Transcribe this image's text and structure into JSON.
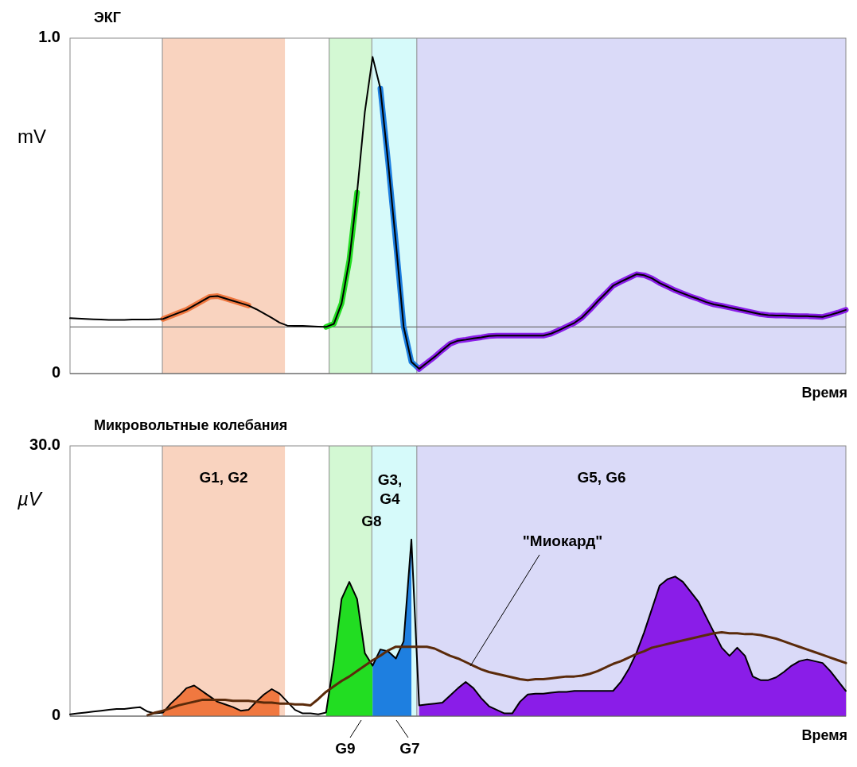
{
  "chart_data": [
    {
      "type": "line",
      "title": "ЭКГ",
      "ylabel": "mV",
      "xlabel": "Время",
      "ylim": [
        0,
        1
      ],
      "yticks": [
        {
          "value": 0,
          "label": "0"
        },
        {
          "value": 1,
          "label": "1.0"
        }
      ],
      "tick_labels": "y",
      "categories": [
        null,
        null,
        null,
        null,
        null,
        null,
        null,
        null,
        null,
        null,
        null,
        null,
        null,
        null,
        null,
        null,
        null,
        null,
        null,
        null,
        null,
        null,
        null,
        null,
        null,
        null,
        null,
        null,
        null,
        null,
        null,
        null,
        null,
        null,
        null,
        null,
        null,
        null,
        null,
        null,
        null,
        null,
        null,
        null,
        null,
        null,
        null,
        null,
        null,
        null,
        null,
        null,
        null,
        null,
        null,
        null,
        null,
        null,
        null,
        null,
        null,
        null,
        null,
        null,
        null,
        null,
        null,
        null,
        null,
        null,
        null,
        null,
        null,
        null,
        null,
        null,
        null,
        null,
        null,
        null,
        null,
        null,
        null,
        null,
        null,
        null,
        null,
        null,
        null,
        null,
        null,
        null,
        null,
        null,
        null,
        null,
        null,
        null,
        null,
        null,
        null
      ],
      "ref_lines": [
        {
          "axis": "y",
          "value": 0.139,
          "color": "#707070"
        }
      ],
      "series": [
        {
          "color": "#f07840",
          "values": [
            null,
            null,
            null,
            null,
            null,
            null,
            null,
            null,
            null,
            null,
            null,
            null,
            0.163,
            0.172,
            0.181,
            0.19,
            0.203,
            0.216,
            0.229,
            0.231,
            0.224,
            0.217,
            0.21,
            0.203,
            null,
            null,
            null,
            null,
            null,
            null,
            null,
            null,
            null,
            null,
            null,
            null,
            null,
            null,
            null,
            null,
            null,
            null,
            null,
            null,
            null,
            null,
            null,
            null,
            null,
            null,
            null,
            null,
            null,
            null,
            null,
            null,
            null,
            null,
            null,
            null,
            null,
            null,
            null,
            null,
            null,
            null,
            null,
            null,
            null,
            null,
            null,
            null,
            null,
            null,
            null,
            null,
            null,
            null,
            null,
            null,
            null,
            null,
            null,
            null,
            null,
            null,
            null,
            null,
            null,
            null,
            null,
            null,
            null,
            null,
            null,
            null,
            null,
            null,
            null,
            null,
            null
          ]
        },
        {
          "color": "#22dd22",
          "values": [
            null,
            null,
            null,
            null,
            null,
            null,
            null,
            null,
            null,
            null,
            null,
            null,
            null,
            null,
            null,
            null,
            null,
            null,
            null,
            null,
            null,
            null,
            null,
            null,
            null,
            null,
            null,
            null,
            null,
            null,
            null,
            null,
            null,
            0.139,
            0.148,
            0.209,
            0.338,
            0.54,
            null,
            null,
            null,
            null,
            null,
            null,
            null,
            null,
            null,
            null,
            null,
            null,
            null,
            null,
            null,
            null,
            null,
            null,
            null,
            null,
            null,
            null,
            null,
            null,
            null,
            null,
            null,
            null,
            null,
            null,
            null,
            null,
            null,
            null,
            null,
            null,
            null,
            null,
            null,
            null,
            null,
            null,
            null,
            null,
            null,
            null,
            null,
            null,
            null,
            null,
            null,
            null,
            null,
            null,
            null,
            null,
            null,
            null,
            null,
            null,
            null,
            null,
            null
          ]
        },
        {
          "color": "#1e7fe0",
          "values": [
            null,
            null,
            null,
            null,
            null,
            null,
            null,
            null,
            null,
            null,
            null,
            null,
            null,
            null,
            null,
            null,
            null,
            null,
            null,
            null,
            null,
            null,
            null,
            null,
            null,
            null,
            null,
            null,
            null,
            null,
            null,
            null,
            null,
            null,
            null,
            null,
            null,
            null,
            null,
            null,
            0.85,
            0.63,
            0.39,
            0.14,
            0.035,
            0.014,
            null,
            null,
            null,
            null,
            null,
            null,
            null,
            null,
            null,
            null,
            null,
            null,
            null,
            null,
            null,
            null,
            null,
            null,
            null,
            null,
            null,
            null,
            null,
            null,
            null,
            null,
            null,
            null,
            null,
            null,
            null,
            null,
            null,
            null,
            null,
            null,
            null,
            null,
            null,
            null,
            null,
            null,
            null,
            null,
            null,
            null,
            null,
            null,
            null,
            null,
            null,
            null,
            null,
            null,
            null
          ]
        },
        {
          "color": "#8a1de8",
          "values": [
            null,
            null,
            null,
            null,
            null,
            null,
            null,
            null,
            null,
            null,
            null,
            null,
            null,
            null,
            null,
            null,
            null,
            null,
            null,
            null,
            null,
            null,
            null,
            null,
            null,
            null,
            null,
            null,
            null,
            null,
            null,
            null,
            null,
            null,
            null,
            null,
            null,
            null,
            null,
            null,
            null,
            null,
            null,
            null,
            null,
            0.014,
            0.032,
            0.05,
            0.07,
            0.089,
            0.098,
            0.101,
            0.105,
            0.108,
            0.112,
            0.113,
            0.113,
            0.113,
            0.113,
            0.113,
            0.113,
            0.113,
            0.119,
            0.129,
            0.14,
            0.151,
            0.167,
            0.19,
            0.215,
            0.238,
            0.262,
            0.274,
            0.285,
            0.296,
            0.293,
            0.284,
            0.27,
            0.259,
            0.248,
            0.239,
            0.23,
            0.222,
            0.213,
            0.206,
            0.202,
            0.197,
            0.192,
            0.187,
            0.182,
            0.177,
            0.174,
            0.173,
            0.173,
            0.172,
            0.171,
            0.171,
            0.17,
            0.169,
            0.175,
            0.182,
            0.19
          ]
        },
        {
          "color": "#000000",
          "values": [
            0.165,
            0.164,
            0.163,
            0.162,
            0.161,
            0.16,
            0.16,
            0.16,
            0.161,
            0.161,
            0.161,
            0.162,
            0.163,
            0.172,
            0.181,
            0.19,
            0.203,
            0.216,
            0.229,
            0.231,
            0.224,
            0.217,
            0.21,
            0.203,
            0.192,
            0.179,
            0.166,
            0.152,
            0.143,
            0.142,
            0.142,
            0.141,
            0.14,
            0.139,
            0.148,
            0.209,
            0.338,
            0.54,
            0.78,
            0.944,
            0.85,
            0.63,
            0.39,
            0.14,
            0.035,
            0.014,
            0.032,
            0.05,
            0.07,
            0.089,
            0.098,
            0.101,
            0.105,
            0.108,
            0.112,
            0.113,
            0.113,
            0.113,
            0.113,
            0.113,
            0.113,
            0.113,
            0.119,
            0.129,
            0.14,
            0.151,
            0.167,
            0.19,
            0.215,
            0.238,
            0.262,
            0.274,
            0.285,
            0.296,
            0.293,
            0.284,
            0.27,
            0.259,
            0.248,
            0.239,
            0.23,
            0.222,
            0.213,
            0.206,
            0.202,
            0.197,
            0.192,
            0.187,
            0.182,
            0.177,
            0.174,
            0.173,
            0.173,
            0.172,
            0.171,
            0.171,
            0.17,
            0.169,
            0.175,
            0.182,
            0.19
          ]
        }
      ]
    },
    {
      "type": "area",
      "title": "Микровольтные колебания",
      "ylabel": "µV",
      "xlabel": "Время",
      "ylim": [
        0,
        30
      ],
      "yticks": [
        {
          "value": 0,
          "label": "0"
        },
        {
          "value": 30,
          "label": "30.0"
        }
      ],
      "tick_labels": "y",
      "categories": [
        null,
        null,
        null,
        null,
        null,
        null,
        null,
        null,
        null,
        null,
        null,
        null,
        null,
        null,
        null,
        null,
        null,
        null,
        null,
        null,
        null,
        null,
        null,
        null,
        null,
        null,
        null,
        null,
        null,
        null,
        null,
        null,
        null,
        null,
        null,
        null,
        null,
        null,
        null,
        null,
        null,
        null,
        null,
        null,
        null,
        null,
        null,
        null,
        null,
        null,
        null,
        null,
        null,
        null,
        null,
        null,
        null,
        null,
        null,
        null,
        null,
        null,
        null,
        null,
        null,
        null,
        null,
        null,
        null,
        null,
        null,
        null,
        null,
        null,
        null,
        null,
        null,
        null,
        null,
        null,
        null,
        null,
        null,
        null,
        null,
        null,
        null,
        null,
        null,
        null,
        null,
        null,
        null,
        null,
        null,
        null,
        null,
        null,
        null,
        null,
        null
      ],
      "annotations": [
        "G1, G2",
        "G3, G4",
        "G8",
        "G5, G6",
        "\"Миокард\"",
        "G9",
        "G7"
      ],
      "series": [
        {
          "color": "#f07840",
          "values": [
            null,
            null,
            null,
            null,
            null,
            null,
            null,
            null,
            null,
            null,
            null,
            null,
            0.4,
            1.4,
            2.2,
            3.1,
            3.4,
            2.8,
            2.2,
            1.6,
            1.3,
            1,
            0.6,
            0.7,
            1.6,
            2.4,
            3,
            2.5,
            null,
            null,
            null,
            null,
            null,
            null,
            null,
            null,
            null,
            null,
            null,
            null,
            null,
            null,
            null,
            null,
            null,
            null,
            null,
            null,
            null,
            null,
            null,
            null,
            null,
            null,
            null,
            null,
            null,
            null,
            null,
            null,
            null,
            null,
            null,
            null,
            null,
            null,
            null,
            null,
            null,
            null,
            null,
            null,
            null,
            null,
            null,
            null,
            null,
            null,
            null,
            null,
            null,
            null,
            null,
            null,
            null,
            null,
            null,
            null,
            null,
            null,
            null,
            null,
            null,
            null,
            null,
            null,
            null,
            null,
            null,
            null,
            null
          ]
        },
        {
          "color": "#22dd22",
          "values": [
            null,
            null,
            null,
            null,
            null,
            null,
            null,
            null,
            null,
            null,
            null,
            null,
            null,
            null,
            null,
            null,
            null,
            null,
            null,
            null,
            null,
            null,
            null,
            null,
            null,
            null,
            null,
            null,
            null,
            null,
            null,
            null,
            null,
            0.4,
            6,
            13,
            14.9,
            13,
            7,
            5.6,
            null,
            null,
            null,
            null,
            null,
            null,
            null,
            null,
            null,
            null,
            null,
            null,
            null,
            null,
            null,
            null,
            null,
            null,
            null,
            null,
            null,
            null,
            null,
            null,
            null,
            null,
            null,
            null,
            null,
            null,
            null,
            null,
            null,
            null,
            null,
            null,
            null,
            null,
            null,
            null,
            null,
            null,
            null,
            null,
            null,
            null,
            null,
            null,
            null,
            null,
            null,
            null,
            null,
            null,
            null,
            null,
            null,
            null,
            null,
            null,
            null
          ]
        },
        {
          "color": "#1e7fe0",
          "values": [
            null,
            null,
            null,
            null,
            null,
            null,
            null,
            null,
            null,
            null,
            null,
            null,
            null,
            null,
            null,
            null,
            null,
            null,
            null,
            null,
            null,
            null,
            null,
            null,
            null,
            null,
            null,
            null,
            null,
            null,
            null,
            null,
            null,
            null,
            null,
            null,
            null,
            null,
            null,
            5.6,
            7.4,
            7.2,
            6.4,
            8.3,
            19.6,
            null,
            null,
            null,
            null,
            null,
            null,
            null,
            null,
            null,
            null,
            null,
            null,
            null,
            null,
            null,
            null,
            null,
            null,
            null,
            null,
            null,
            null,
            null,
            null,
            null,
            null,
            null,
            null,
            null,
            null,
            null,
            null,
            null,
            null,
            null,
            null,
            null,
            null,
            null,
            null,
            null,
            null,
            null,
            null,
            null,
            null,
            null,
            null,
            null,
            null,
            null,
            null,
            null,
            null,
            null,
            null
          ]
        },
        {
          "color": "#8a1de8",
          "values": [
            null,
            null,
            null,
            null,
            null,
            null,
            null,
            null,
            null,
            null,
            null,
            null,
            null,
            null,
            null,
            null,
            null,
            null,
            null,
            null,
            null,
            null,
            null,
            null,
            null,
            null,
            null,
            null,
            null,
            null,
            null,
            null,
            null,
            null,
            null,
            null,
            null,
            null,
            null,
            null,
            null,
            null,
            null,
            null,
            null,
            1.2,
            1.3,
            1.4,
            1.5,
            2.3,
            3.1,
            3.8,
            3.1,
            2,
            1.1,
            0.7,
            0.3,
            0.3,
            1.6,
            2.4,
            2.5,
            2.5,
            2.6,
            2.7,
            2.7,
            2.8,
            2.8,
            2.8,
            2.8,
            2.8,
            2.8,
            3.8,
            5.2,
            7,
            9.3,
            11.9,
            14.5,
            15.2,
            15.5,
            14.9,
            13.8,
            12.7,
            11,
            9.3,
            7.6,
            6.7,
            7.6,
            6.7,
            4.4,
            4,
            4,
            4.3,
            4.9,
            5.6,
            6.1,
            6.3,
            6.1,
            5.9,
            5,
            3.9,
            2.8
          ]
        },
        {
          "type": "line",
          "color": "#000000",
          "values": [
            0.2,
            0.3,
            0.4,
            0.5,
            0.6,
            0.7,
            0.8,
            0.8,
            0.9,
            1,
            0.5,
            0.3,
            0.4,
            1.4,
            2.2,
            3.1,
            3.4,
            2.8,
            2.2,
            1.6,
            1.3,
            1,
            0.6,
            0.7,
            1.6,
            2.4,
            3,
            2.5,
            1.6,
            0.7,
            0.3,
            0.3,
            0.2,
            0.4,
            6,
            13,
            14.9,
            13,
            7,
            5.6,
            7.4,
            7.2,
            6.4,
            8.3,
            19.6,
            1.2,
            1.3,
            1.4,
            1.5,
            2.3,
            3.1,
            3.8,
            3.1,
            2,
            1.1,
            0.7,
            0.3,
            0.3,
            1.6,
            2.4,
            2.5,
            2.5,
            2.6,
            2.7,
            2.7,
            2.8,
            2.8,
            2.8,
            2.8,
            2.8,
            2.8,
            3.8,
            5.2,
            7,
            9.3,
            11.9,
            14.5,
            15.2,
            15.5,
            14.9,
            13.8,
            12.7,
            11,
            9.3,
            7.6,
            6.7,
            7.6,
            6.7,
            4.4,
            4,
            4,
            4.3,
            4.9,
            5.6,
            6.1,
            6.3,
            6.1,
            5.9,
            5,
            3.9,
            2.8
          ]
        },
        {
          "type": "line",
          "color": "#5a2a0a",
          "values": [
            null,
            null,
            null,
            null,
            null,
            null,
            null,
            null,
            null,
            null,
            0.1,
            0.4,
            0.6,
            0.9,
            1.2,
            1.4,
            1.6,
            1.8,
            1.8,
            1.8,
            1.8,
            1.7,
            1.7,
            1.7,
            1.6,
            1.5,
            1.5,
            1.4,
            1.4,
            1.3,
            1.3,
            1.2,
            1.9,
            2.7,
            3.3,
            3.9,
            4.4,
            5,
            5.6,
            6.2,
            6.7,
            7.3,
            7.7,
            7.7,
            7.7,
            7.7,
            7.7,
            7.5,
            7.1,
            6.7,
            6.4,
            6,
            5.6,
            5.2,
            4.9,
            4.7,
            4.5,
            4.3,
            4.1,
            4,
            4.1,
            4.1,
            4.2,
            4.3,
            4.4,
            4.4,
            4.5,
            4.7,
            5,
            5.4,
            5.8,
            6.1,
            6.5,
            6.9,
            7.2,
            7.6,
            7.8,
            8,
            8.2,
            8.4,
            8.6,
            8.8,
            9,
            9.2,
            9.3,
            9.2,
            9.2,
            9.1,
            9.1,
            9,
            8.8,
            8.6,
            8.3,
            8,
            7.7,
            7.4,
            7.1,
            6.8,
            6.5,
            6.2,
            5.9
          ]
        }
      ]
    }
  ]
}
